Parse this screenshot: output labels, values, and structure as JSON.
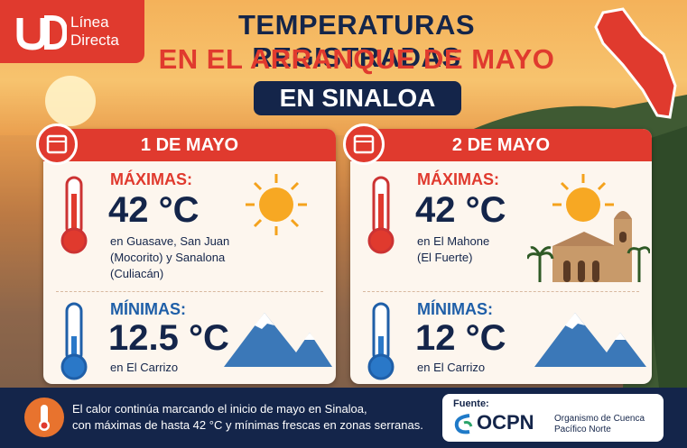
{
  "header": {
    "logo_line1": "Línea",
    "logo_line2": "Directa",
    "title_line1": "TEMPERATURAS REGISTRADAS",
    "title_line2": "EN EL ARRANQUE DE MAYO",
    "title_line3": "EN SINALOA"
  },
  "days": [
    {
      "date": "1 DE MAYO",
      "max_label": "MÁXIMAS:",
      "max_value": "42 °C",
      "max_places": [
        "en Guasave, San Juan",
        "(Mocorito) y Sanalona",
        "(Culiacán)"
      ],
      "min_label": "MÍNIMAS:",
      "min_value": "12.5 °C",
      "min_places": [
        "en El Carrizo"
      ]
    },
    {
      "date": "2 DE MAYO",
      "max_label": "MÁXIMAS:",
      "max_value": "42 °C",
      "max_places": [
        "en El Mahone",
        "(El Fuerte)"
      ],
      "min_label": "MÍNIMAS:",
      "min_value": "12 °C",
      "min_places": [
        "en El Carrizo"
      ]
    }
  ],
  "footer": {
    "note_lines": [
      "El calor continúa marcando el inicio de mayo en Sinaloa,",
      "con máximas de hasta 42 °C y mínimas frescas en zonas serranas."
    ],
    "source_label": "Fuente:",
    "org": "OCPN",
    "org_full": [
      "Organismo de Cuenca",
      "Pacífico Norte"
    ]
  }
}
